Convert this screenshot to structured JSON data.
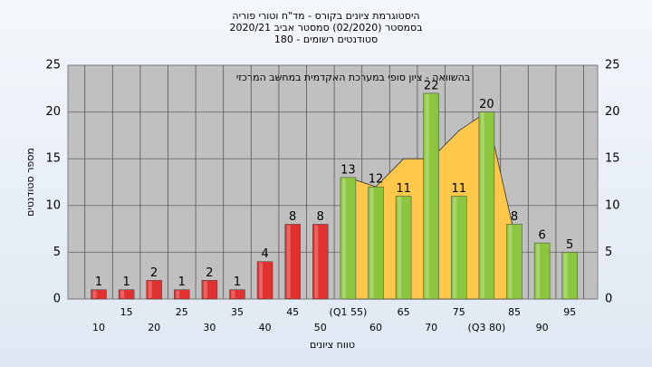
{
  "chart_data": {
    "type": "bar",
    "title": [
      "היסטוגרמת ציונים בקורס - מד\"ח וטורי פוריה",
      "בסמסטר  (02/2020)  סמסטר אביב 2020/21",
      "סטודנטים רשומים - 180"
    ],
    "annotation": "בהשוואה - ציון סופי במערכת האקדמית במחשב המרכזי",
    "x_label": "טווח ציונים",
    "y_label": "מספר סטודנטים",
    "categories": [
      "10",
      "15",
      "20",
      "25",
      "30",
      "35",
      "40",
      "45",
      "50",
      "(Q1 55)",
      "60",
      "65",
      "70",
      "75",
      "(Q3 80)",
      "85",
      "90",
      "95"
    ],
    "values": [
      1,
      1,
      2,
      1,
      2,
      1,
      4,
      8,
      8,
      13,
      12,
      11,
      22,
      11,
      20,
      8,
      6,
      5
    ],
    "colors": [
      "#e03030",
      "#e03030",
      "#e03030",
      "#e03030",
      "#e03030",
      "#e03030",
      "#e03030",
      "#e03030",
      "#e03030",
      "#8cc63f",
      "#8cc63f",
      "#8cc63f",
      "#8cc63f",
      "#8cc63f",
      "#8cc63f",
      "#8cc63f",
      "#8cc63f",
      "#8cc63f"
    ],
    "area": {
      "color": "#ffc84a",
      "values": [
        null,
        null,
        null,
        null,
        null,
        null,
        null,
        null,
        null,
        13,
        12,
        15,
        15,
        18,
        20,
        7,
        null,
        null
      ]
    },
    "ylim": [
      0,
      25
    ],
    "yticks": [
      0,
      5,
      10,
      15,
      20,
      25
    ],
    "y2lim": [
      0,
      25
    ],
    "y2ticks": [
      0,
      5,
      10,
      15,
      20,
      25
    ],
    "grid": true
  }
}
